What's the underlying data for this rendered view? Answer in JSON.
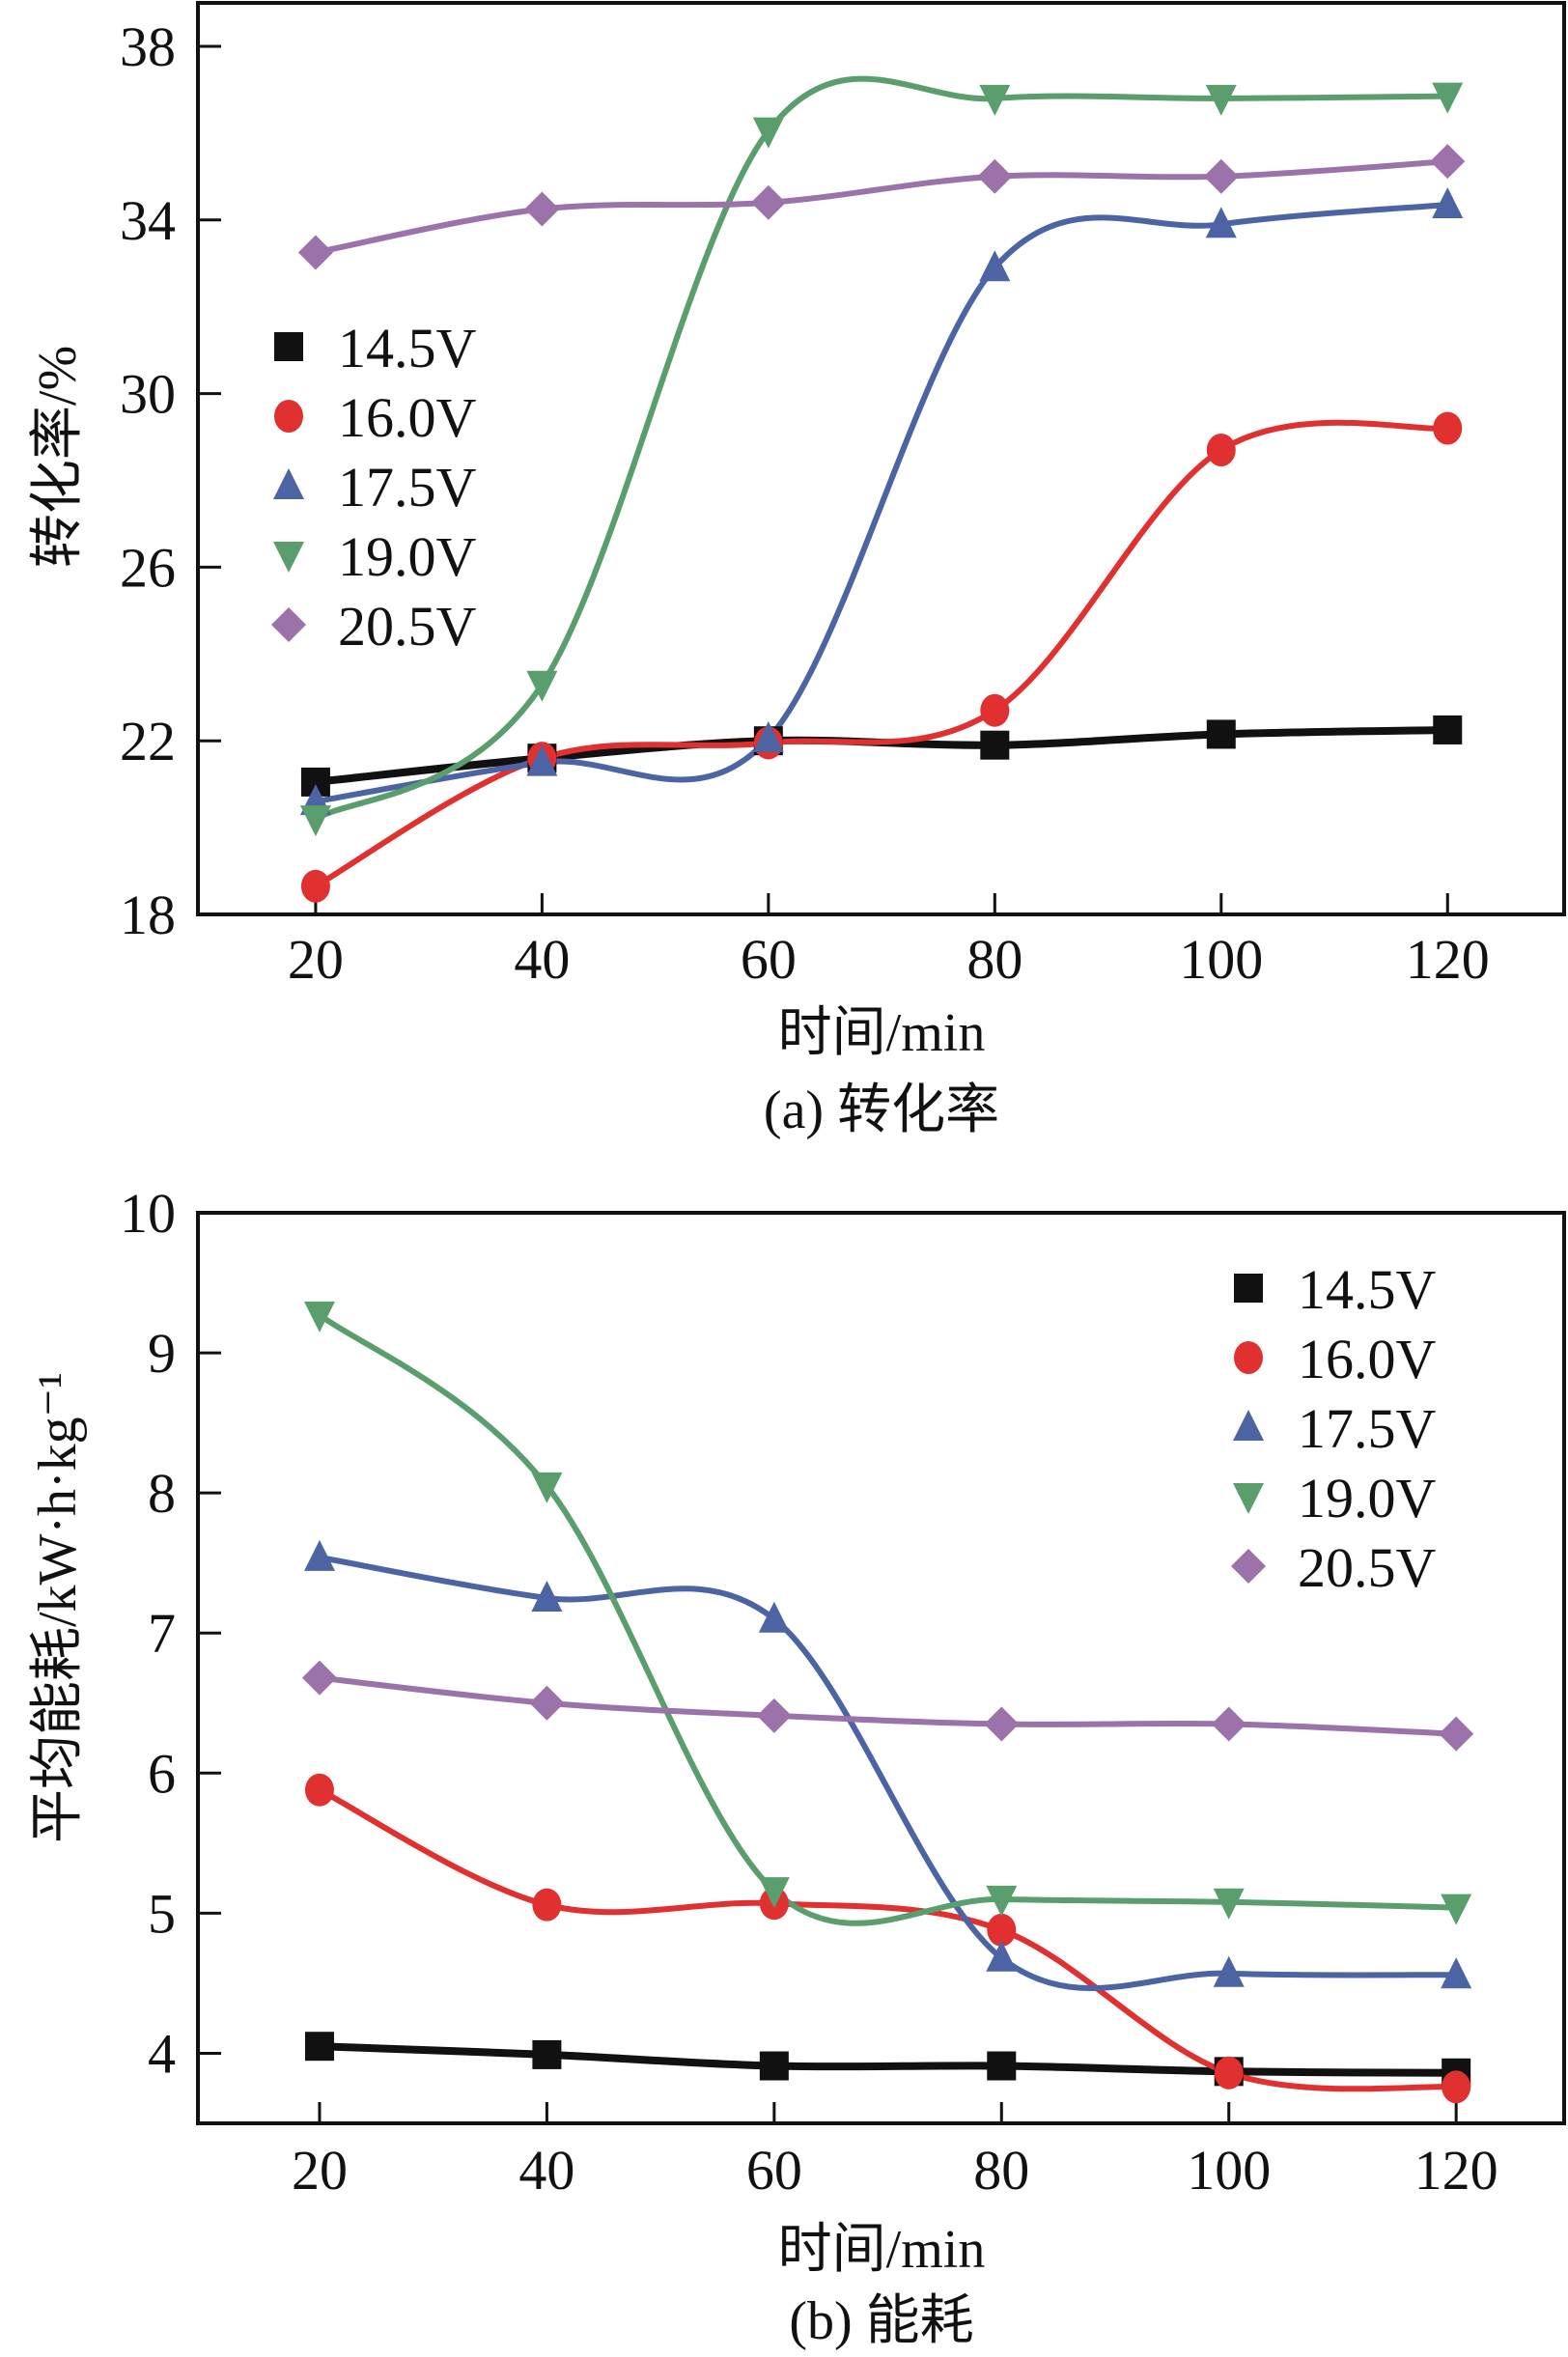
{
  "chart_data": [
    {
      "id": "a",
      "type": "line",
      "smooth": true,
      "title": "",
      "caption": "(a) 转化率",
      "xlabel": "时间/min",
      "ylabel": "转化率/%",
      "xlim": [
        9.6,
        130.3
      ],
      "ylim": [
        18,
        39
      ],
      "xticks": [
        20,
        40,
        60,
        80,
        100,
        120
      ],
      "yticks": [
        18,
        22,
        26,
        30,
        34,
        38
      ],
      "grid": false,
      "legend_position": "middle-left",
      "x": [
        20,
        40,
        60,
        80,
        100,
        120
      ],
      "series": [
        {
          "name": "14.5V",
          "marker": "square",
          "color": "#111111",
          "values": [
            21.05,
            21.6,
            22.0,
            21.9,
            22.15,
            22.25
          ]
        },
        {
          "name": "16.0V",
          "marker": "circle",
          "color": "#e03030",
          "values": [
            18.65,
            21.6,
            21.95,
            22.7,
            28.7,
            29.2
          ]
        },
        {
          "name": "17.5V",
          "marker": "triangle-up",
          "color": "#4c64a4",
          "values": [
            20.6,
            21.5,
            22.05,
            32.9,
            33.9,
            34.35
          ]
        },
        {
          "name": "19.0V",
          "marker": "triangle-down",
          "color": "#5a9e6e",
          "values": [
            20.2,
            23.3,
            36.05,
            36.8,
            36.8,
            36.85
          ]
        },
        {
          "name": "20.5V",
          "marker": "diamond",
          "color": "#9b72aa",
          "values": [
            33.25,
            34.25,
            34.4,
            35.0,
            35.0,
            35.35
          ]
        }
      ]
    },
    {
      "id": "b",
      "type": "line",
      "smooth": true,
      "title": "",
      "caption": "(b) 能耗",
      "xlabel": "时间/min",
      "ylabel": "平均能耗/kW·h·kg⁻¹",
      "xlim": [
        9.3,
        129.5
      ],
      "ylim": [
        3.5,
        10
      ],
      "xticks": [
        20,
        40,
        60,
        80,
        100,
        120
      ],
      "yticks": [
        4,
        5,
        6,
        7,
        8,
        9,
        10
      ],
      "grid": false,
      "legend_position": "top-right",
      "x": [
        20,
        40,
        60,
        80,
        100,
        120
      ],
      "series": [
        {
          "name": "14.5V",
          "marker": "square",
          "color": "#111111",
          "values": [
            4.05,
            3.99,
            3.91,
            3.91,
            3.87,
            3.86
          ]
        },
        {
          "name": "16.0V",
          "marker": "circle",
          "color": "#e03030",
          "values": [
            5.88,
            5.06,
            5.07,
            4.88,
            3.86,
            3.76
          ]
        },
        {
          "name": "17.5V",
          "marker": "triangle-up",
          "color": "#4c64a4",
          "values": [
            7.54,
            7.25,
            7.1,
            4.68,
            4.57,
            4.56
          ]
        },
        {
          "name": "19.0V",
          "marker": "triangle-down",
          "color": "#5a9e6e",
          "values": [
            9.27,
            8.05,
            5.16,
            5.1,
            5.08,
            5.04
          ]
        },
        {
          "name": "20.5V",
          "marker": "diamond",
          "color": "#9b72aa",
          "values": [
            6.68,
            6.5,
            6.41,
            6.35,
            6.35,
            6.28
          ]
        }
      ]
    }
  ]
}
